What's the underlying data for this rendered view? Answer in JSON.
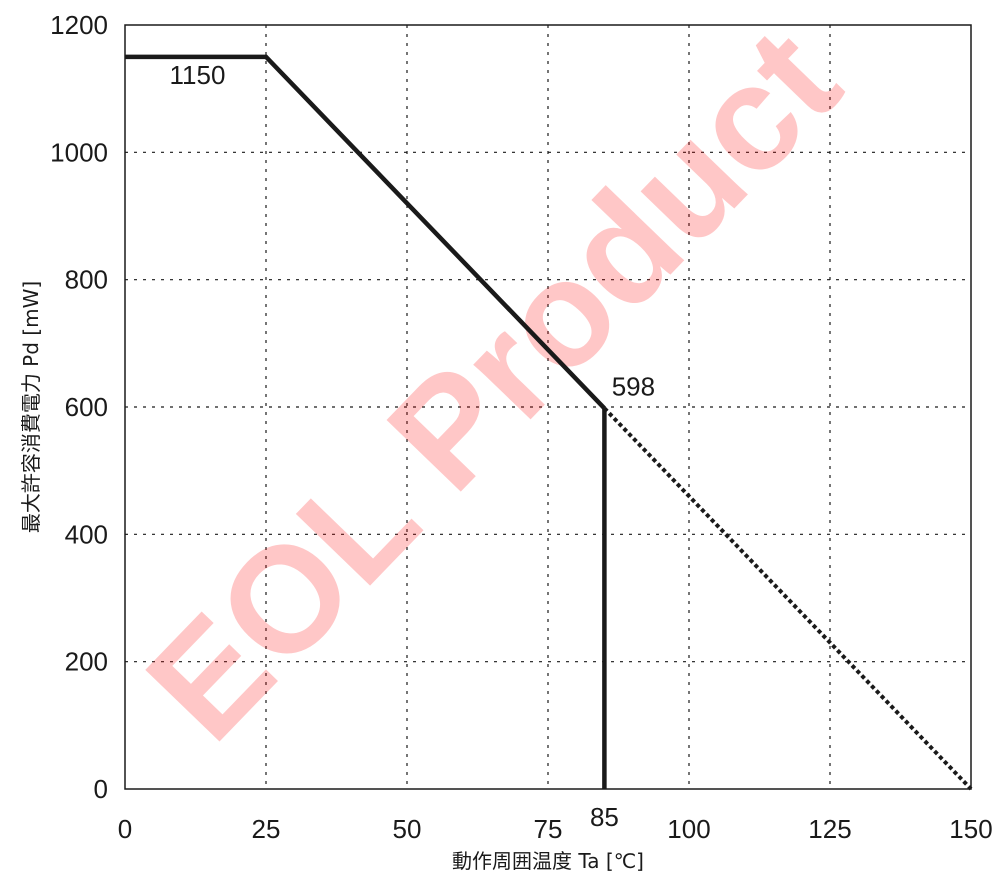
{
  "chart_data": {
    "type": "line",
    "xlabel": "動作周囲温度  Ta [℃]",
    "ylabel": "最大許容消費電力 Pd [mW]",
    "xlim": [
      0,
      150
    ],
    "ylim": [
      0,
      1200
    ],
    "x_ticks": [
      0,
      25,
      50,
      75,
      100,
      125,
      150
    ],
    "y_ticks": [
      0,
      200,
      400,
      600,
      800,
      1000,
      1200
    ],
    "extra_x_tick": 85,
    "grid": true,
    "series": [
      {
        "style": "solid",
        "points": [
          [
            0,
            1150
          ],
          [
            25,
            1150
          ],
          [
            85,
            598
          ]
        ]
      },
      {
        "style": "solid",
        "points": [
          [
            85,
            598
          ],
          [
            85,
            0
          ]
        ]
      },
      {
        "style": "dotted",
        "points": [
          [
            85,
            598
          ],
          [
            150,
            0
          ]
        ]
      }
    ],
    "annotations": [
      {
        "text": "1150",
        "x": 12.5,
        "y": 1150
      },
      {
        "text": "598",
        "x": 85,
        "y": 598
      }
    ],
    "watermark": {
      "text": "EOL Product",
      "color": "#ff0000"
    }
  }
}
